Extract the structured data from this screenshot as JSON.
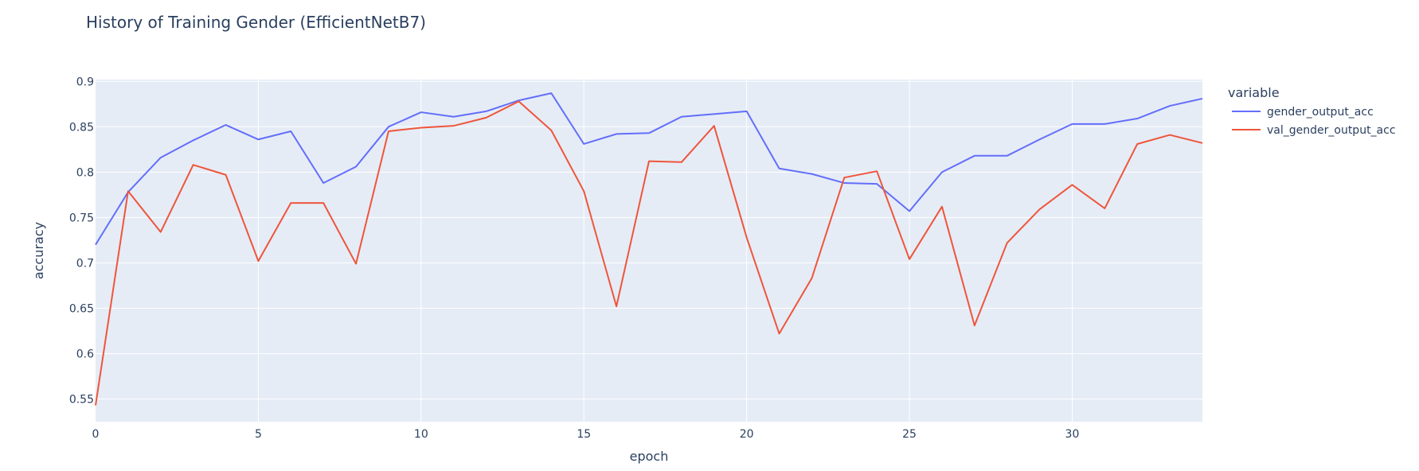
{
  "chart_data": {
    "type": "line",
    "title": "History of Training Gender (EfficientNetB7)",
    "xlabel": "epoch",
    "ylabel": "accuracy",
    "xlim": [
      0,
      34
    ],
    "ylim": [
      0.525,
      0.902
    ],
    "x_ticks": [
      0,
      5,
      10,
      15,
      20,
      25,
      30
    ],
    "y_ticks": [
      0.55,
      0.6,
      0.65,
      0.7,
      0.75,
      0.8,
      0.85,
      0.9
    ],
    "y_tick_labels": [
      "0.55",
      "0.6",
      "0.65",
      "0.7",
      "0.75",
      "0.8",
      "0.85",
      "0.9"
    ],
    "legend_title": "variable",
    "legend_position": "right",
    "grid": true,
    "colors": {
      "plot_bg": "#e5ecf6",
      "grid": "#ffffff"
    },
    "x": [
      0,
      1,
      2,
      3,
      4,
      5,
      6,
      7,
      8,
      9,
      10,
      11,
      12,
      13,
      14,
      15,
      16,
      17,
      18,
      19,
      20,
      21,
      22,
      23,
      24,
      25,
      26,
      27,
      28,
      29,
      30,
      31,
      32,
      33,
      34
    ],
    "series": [
      {
        "name": "gender_output_acc",
        "color": "#636efa",
        "values": [
          0.72,
          0.778,
          0.816,
          0.835,
          0.852,
          0.836,
          0.845,
          0.788,
          0.806,
          0.85,
          0.866,
          0.861,
          0.867,
          0.879,
          0.887,
          0.831,
          0.842,
          0.843,
          0.861,
          0.864,
          0.867,
          0.804,
          0.798,
          0.788,
          0.787,
          0.757,
          0.8,
          0.818,
          0.818,
          0.836,
          0.853,
          0.853,
          0.859,
          0.873,
          0.881
        ]
      },
      {
        "name": "val_gender_output_acc",
        "color": "#ef553b",
        "values": [
          0.543,
          0.779,
          0.734,
          0.808,
          0.797,
          0.702,
          0.766,
          0.766,
          0.699,
          0.845,
          0.849,
          0.851,
          0.86,
          0.878,
          0.846,
          0.779,
          0.652,
          0.812,
          0.811,
          0.851,
          0.728,
          0.622,
          0.683,
          0.794,
          0.801,
          0.704,
          0.762,
          0.631,
          0.722,
          0.759,
          0.786,
          0.76,
          0.831,
          0.841,
          0.832
        ]
      }
    ]
  }
}
